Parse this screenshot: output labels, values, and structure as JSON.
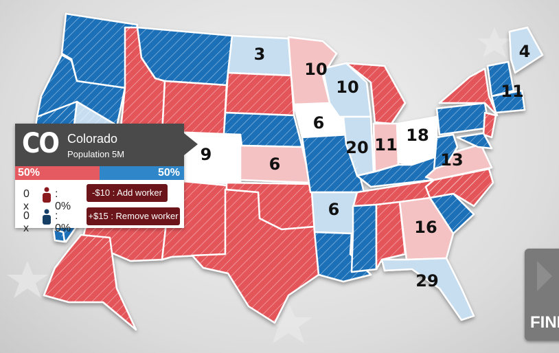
{
  "colors": {
    "red": "#e4545a",
    "blue": "#1f6fb8",
    "light_red": "#f5c2c4",
    "light_blue": "#c7def1",
    "white": "#ffffff",
    "panel": "#4a4a4a",
    "button": "#6b1419"
  },
  "state_votes": [
    "3",
    "4",
    "10",
    "10",
    "11",
    "6",
    "18",
    "9",
    "20",
    "11",
    "6",
    "13",
    "6",
    "16",
    "29"
  ],
  "panel": {
    "abbr": "CO",
    "name": "Colorado",
    "population": "Population 5M",
    "red_pct": "50%",
    "blue_pct": "50%",
    "red_workers": "0 x",
    "red_worker_pct": ": 0%",
    "blue_workers": "0 x",
    "blue_worker_pct": ": 0%",
    "add_worker_label": "-$10 : Add worker",
    "remove_worker_label": "+$15 : Remove worker",
    "red_worker_icon": "person-icon-red",
    "blue_worker_icon": "person-icon-blue"
  },
  "finish_button": {
    "label": "FINI"
  }
}
